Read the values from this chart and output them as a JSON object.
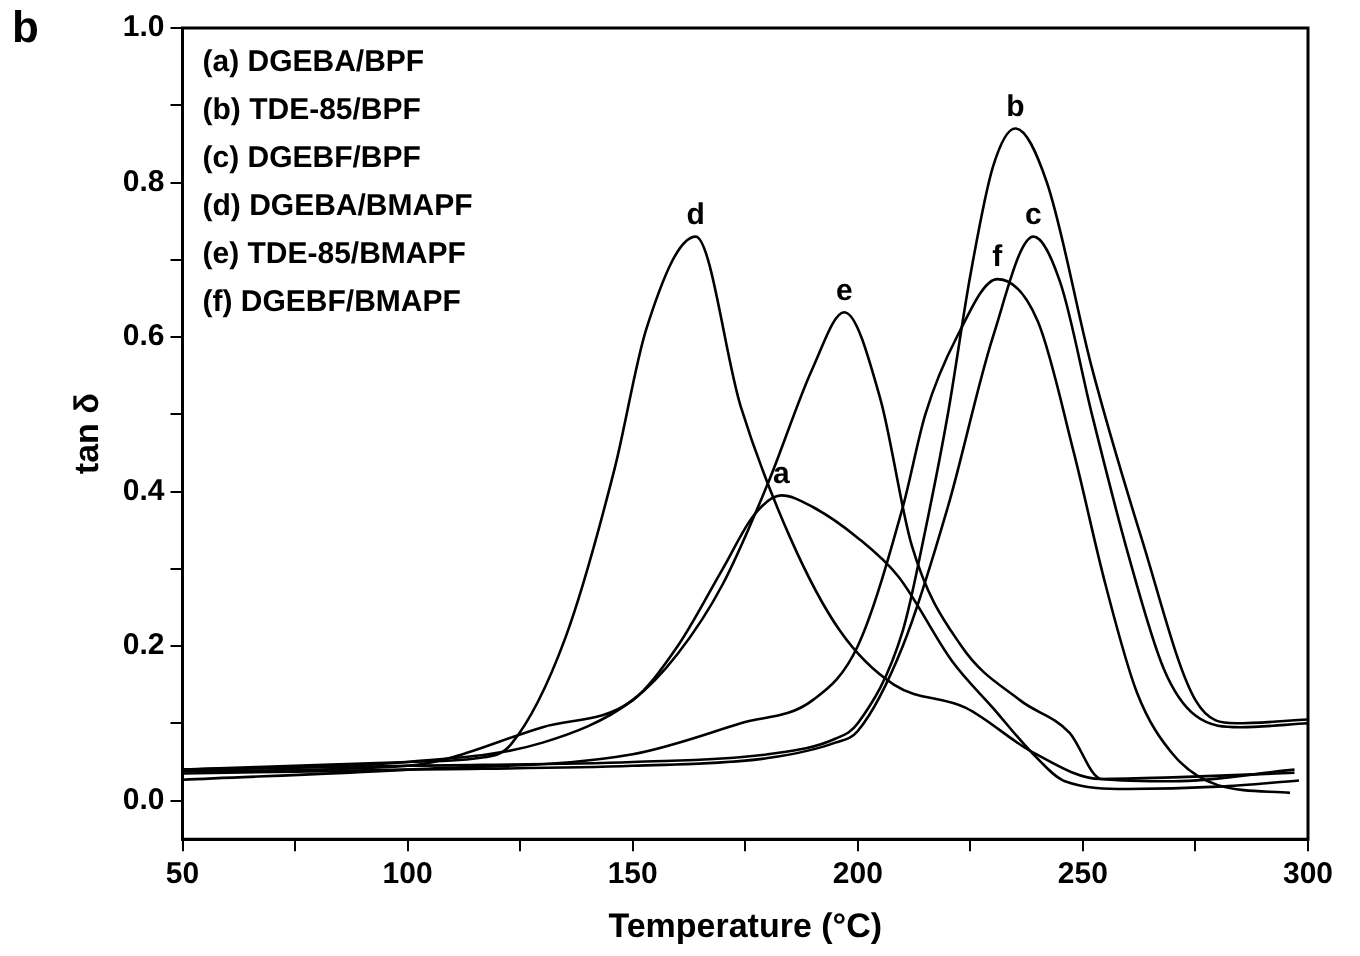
{
  "chart_data": {
    "type": "line",
    "title": "b",
    "xlabel": "Temperature (°C)",
    "ylabel": "tan δ",
    "legend": false,
    "grid": false,
    "marker": "none",
    "line_style": "solid",
    "xlim": [
      50,
      300
    ],
    "ylim": [
      -0.05,
      1.0
    ],
    "xticks": [
      50,
      {
        "value": 75,
        "label": null
      },
      100,
      {
        "value": 125,
        "label": null
      },
      150,
      {
        "value": 175,
        "label": null
      },
      200,
      {
        "value": 225,
        "label": null
      },
      250,
      {
        "value": 275,
        "label": null
      },
      300
    ],
    "yticks": [
      {
        "value": 0,
        "label": "0.0"
      },
      {
        "value": 0.1,
        "label": null
      },
      {
        "value": 0.2,
        "label": "0.2"
      },
      {
        "value": 0.3,
        "label": null
      },
      {
        "value": 0.4,
        "label": "0.4"
      },
      {
        "value": 0.5,
        "label": null
      },
      {
        "value": 0.6,
        "label": "0.6"
      },
      {
        "value": 0.7,
        "label": null
      },
      {
        "value": 0.8,
        "label": "0.8"
      },
      {
        "value": 0.9,
        "label": null
      },
      {
        "value": 1.0,
        "label": "1.0"
      }
    ],
    "series": [
      {
        "name": "a",
        "color": "#000000",
        "x": [
          50,
          100,
          130,
          150,
          160,
          170,
          177,
          183,
          190,
          200,
          209,
          221,
          230,
          239,
          246,
          260,
          280,
          298
        ],
        "values": [
          0.038,
          0.045,
          0.095,
          0.13,
          0.2,
          0.3,
          0.37,
          0.395,
          0.38,
          0.34,
          0.29,
          0.18,
          0.12,
          0.06,
          0.025,
          0.015,
          0.018,
          0.026
        ]
      },
      {
        "name": "b",
        "color": "#000000",
        "x": [
          50,
          100,
          150,
          180,
          195,
          200,
          210,
          215,
          220,
          225,
          230,
          235,
          242,
          252,
          263,
          275,
          284,
          300
        ],
        "values": [
          0.04,
          0.045,
          0.05,
          0.06,
          0.08,
          0.1,
          0.22,
          0.35,
          0.5,
          0.68,
          0.82,
          0.87,
          0.8,
          0.56,
          0.34,
          0.13,
          0.1,
          0.105
        ]
      },
      {
        "name": "c",
        "color": "#000000",
        "x": [
          50,
          100,
          150,
          180,
          195,
          200,
          210,
          220,
          230,
          239,
          245,
          252,
          260,
          268,
          275,
          285,
          300
        ],
        "values": [
          0.035,
          0.04,
          0.045,
          0.055,
          0.075,
          0.09,
          0.2,
          0.38,
          0.6,
          0.73,
          0.67,
          0.5,
          0.32,
          0.17,
          0.11,
          0.095,
          0.1
        ]
      },
      {
        "name": "d",
        "color": "#000000",
        "x": [
          50,
          100,
          117,
          123,
          135,
          146,
          153,
          164,
          174,
          185,
          196,
          208,
          224,
          239,
          254,
          270,
          297
        ],
        "values": [
          0.04,
          0.05,
          0.056,
          0.073,
          0.21,
          0.43,
          0.61,
          0.73,
          0.51,
          0.34,
          0.22,
          0.15,
          0.12,
          0.062,
          0.028,
          0.03,
          0.036
        ]
      },
      {
        "name": "e",
        "color": "#000000",
        "x": [
          50,
          100,
          130,
          150,
          160,
          170,
          180,
          190,
          197,
          205,
          212,
          223,
          236,
          247,
          254,
          270,
          297
        ],
        "values": [
          0.04,
          0.05,
          0.075,
          0.13,
          0.19,
          0.28,
          0.41,
          0.56,
          0.632,
          0.52,
          0.33,
          0.2,
          0.13,
          0.088,
          0.028,
          0.025,
          0.04
        ]
      },
      {
        "name": "f",
        "color": "#000000",
        "x": [
          50,
          100,
          150,
          174,
          190,
          200,
          210,
          215,
          222,
          231,
          240,
          248,
          255,
          262,
          270,
          280,
          296
        ],
        "values": [
          0.027,
          0.04,
          0.06,
          0.1,
          0.13,
          0.2,
          0.38,
          0.5,
          0.6,
          0.675,
          0.62,
          0.45,
          0.28,
          0.14,
          0.06,
          0.02,
          0.01
        ]
      }
    ],
    "annotations": [
      "(a) DGEBA/BPF",
      "(b) TDE-85/BPF",
      "(c) DGEBF/BPF",
      "(d) DGEBA/BMAPF",
      "(e) TDE-85/BMAPF",
      "(f) DGEBF/BMAPF"
    ]
  }
}
